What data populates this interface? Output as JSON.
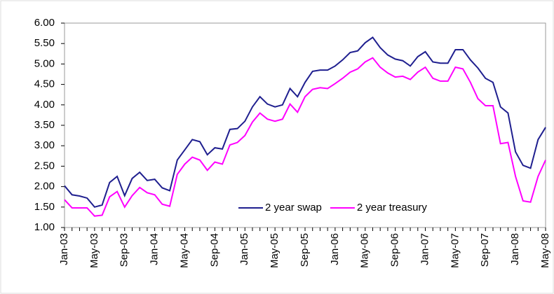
{
  "chart_data": {
    "type": "line",
    "categories": [
      "Jan-03",
      null,
      null,
      null,
      "May-03",
      null,
      null,
      null,
      "Sep-03",
      null,
      null,
      null,
      "Jan-04",
      null,
      null,
      null,
      "May-04",
      null,
      null,
      null,
      "Sep-04",
      null,
      null,
      null,
      "Jan-05",
      null,
      null,
      null,
      "May-05",
      null,
      null,
      null,
      "Sep-05",
      null,
      null,
      null,
      "Jan-06",
      null,
      null,
      null,
      "May-06",
      null,
      null,
      null,
      "Sep-06",
      null,
      null,
      null,
      "Jan-07",
      null,
      null,
      null,
      "May-07",
      null,
      null,
      null,
      "Sep-07",
      null,
      null,
      null,
      "Jan-08",
      null,
      null,
      null,
      "May-08"
    ],
    "series": [
      {
        "name": "2 year swap",
        "color": "#1f1f8f",
        "values": [
          2.02,
          1.8,
          1.77,
          1.72,
          1.5,
          1.55,
          2.1,
          2.25,
          1.78,
          2.2,
          2.35,
          2.15,
          2.18,
          1.97,
          1.9,
          2.65,
          2.9,
          3.15,
          3.1,
          2.78,
          2.95,
          2.92,
          3.4,
          3.42,
          3.6,
          3.95,
          4.2,
          4.02,
          3.95,
          4.0,
          4.4,
          4.2,
          4.55,
          4.82,
          4.85,
          4.85,
          4.95,
          5.1,
          5.28,
          5.32,
          5.52,
          5.65,
          5.4,
          5.22,
          5.12,
          5.08,
          4.95,
          5.18,
          5.3,
          5.05,
          5.02,
          5.02,
          5.35,
          5.35,
          5.1,
          4.9,
          4.65,
          4.55,
          3.95,
          3.8,
          2.85,
          2.52,
          2.45,
          3.15,
          3.45
        ]
      },
      {
        "name": "2 year treasury",
        "color": "#ff00ff",
        "values": [
          1.68,
          1.48,
          1.48,
          1.48,
          1.28,
          1.3,
          1.75,
          1.88,
          1.5,
          1.78,
          1.98,
          1.85,
          1.8,
          1.57,
          1.52,
          2.3,
          2.55,
          2.72,
          2.65,
          2.4,
          2.6,
          2.55,
          3.02,
          3.08,
          3.25,
          3.58,
          3.8,
          3.65,
          3.6,
          3.65,
          4.02,
          3.82,
          4.2,
          4.38,
          4.42,
          4.4,
          4.52,
          4.65,
          4.8,
          4.88,
          5.05,
          5.15,
          4.92,
          4.78,
          4.68,
          4.7,
          4.62,
          4.8,
          4.92,
          4.65,
          4.58,
          4.58,
          4.92,
          4.88,
          4.55,
          4.15,
          3.98,
          3.98,
          3.05,
          3.08,
          2.25,
          1.65,
          1.62,
          2.25,
          2.65
        ]
      }
    ],
    "ylim": [
      1,
      6
    ],
    "yticks": [
      {
        "value": 1,
        "label": "1.00"
      },
      {
        "value": 1.5,
        "label": "1.50"
      },
      {
        "value": 2,
        "label": "2.00"
      },
      {
        "value": 2.5,
        "label": "2.50"
      },
      {
        "value": 3,
        "label": "3.00"
      },
      {
        "value": 3.5,
        "label": "3.50"
      },
      {
        "value": 4,
        "label": "4.00"
      },
      {
        "value": 4.5,
        "label": "4.50"
      },
      {
        "value": 5,
        "label": "5.00"
      },
      {
        "value": 5.5,
        "label": "5.50"
      },
      {
        "value": 6,
        "label": "6.00"
      }
    ],
    "grid": false,
    "legend": "lower right"
  }
}
